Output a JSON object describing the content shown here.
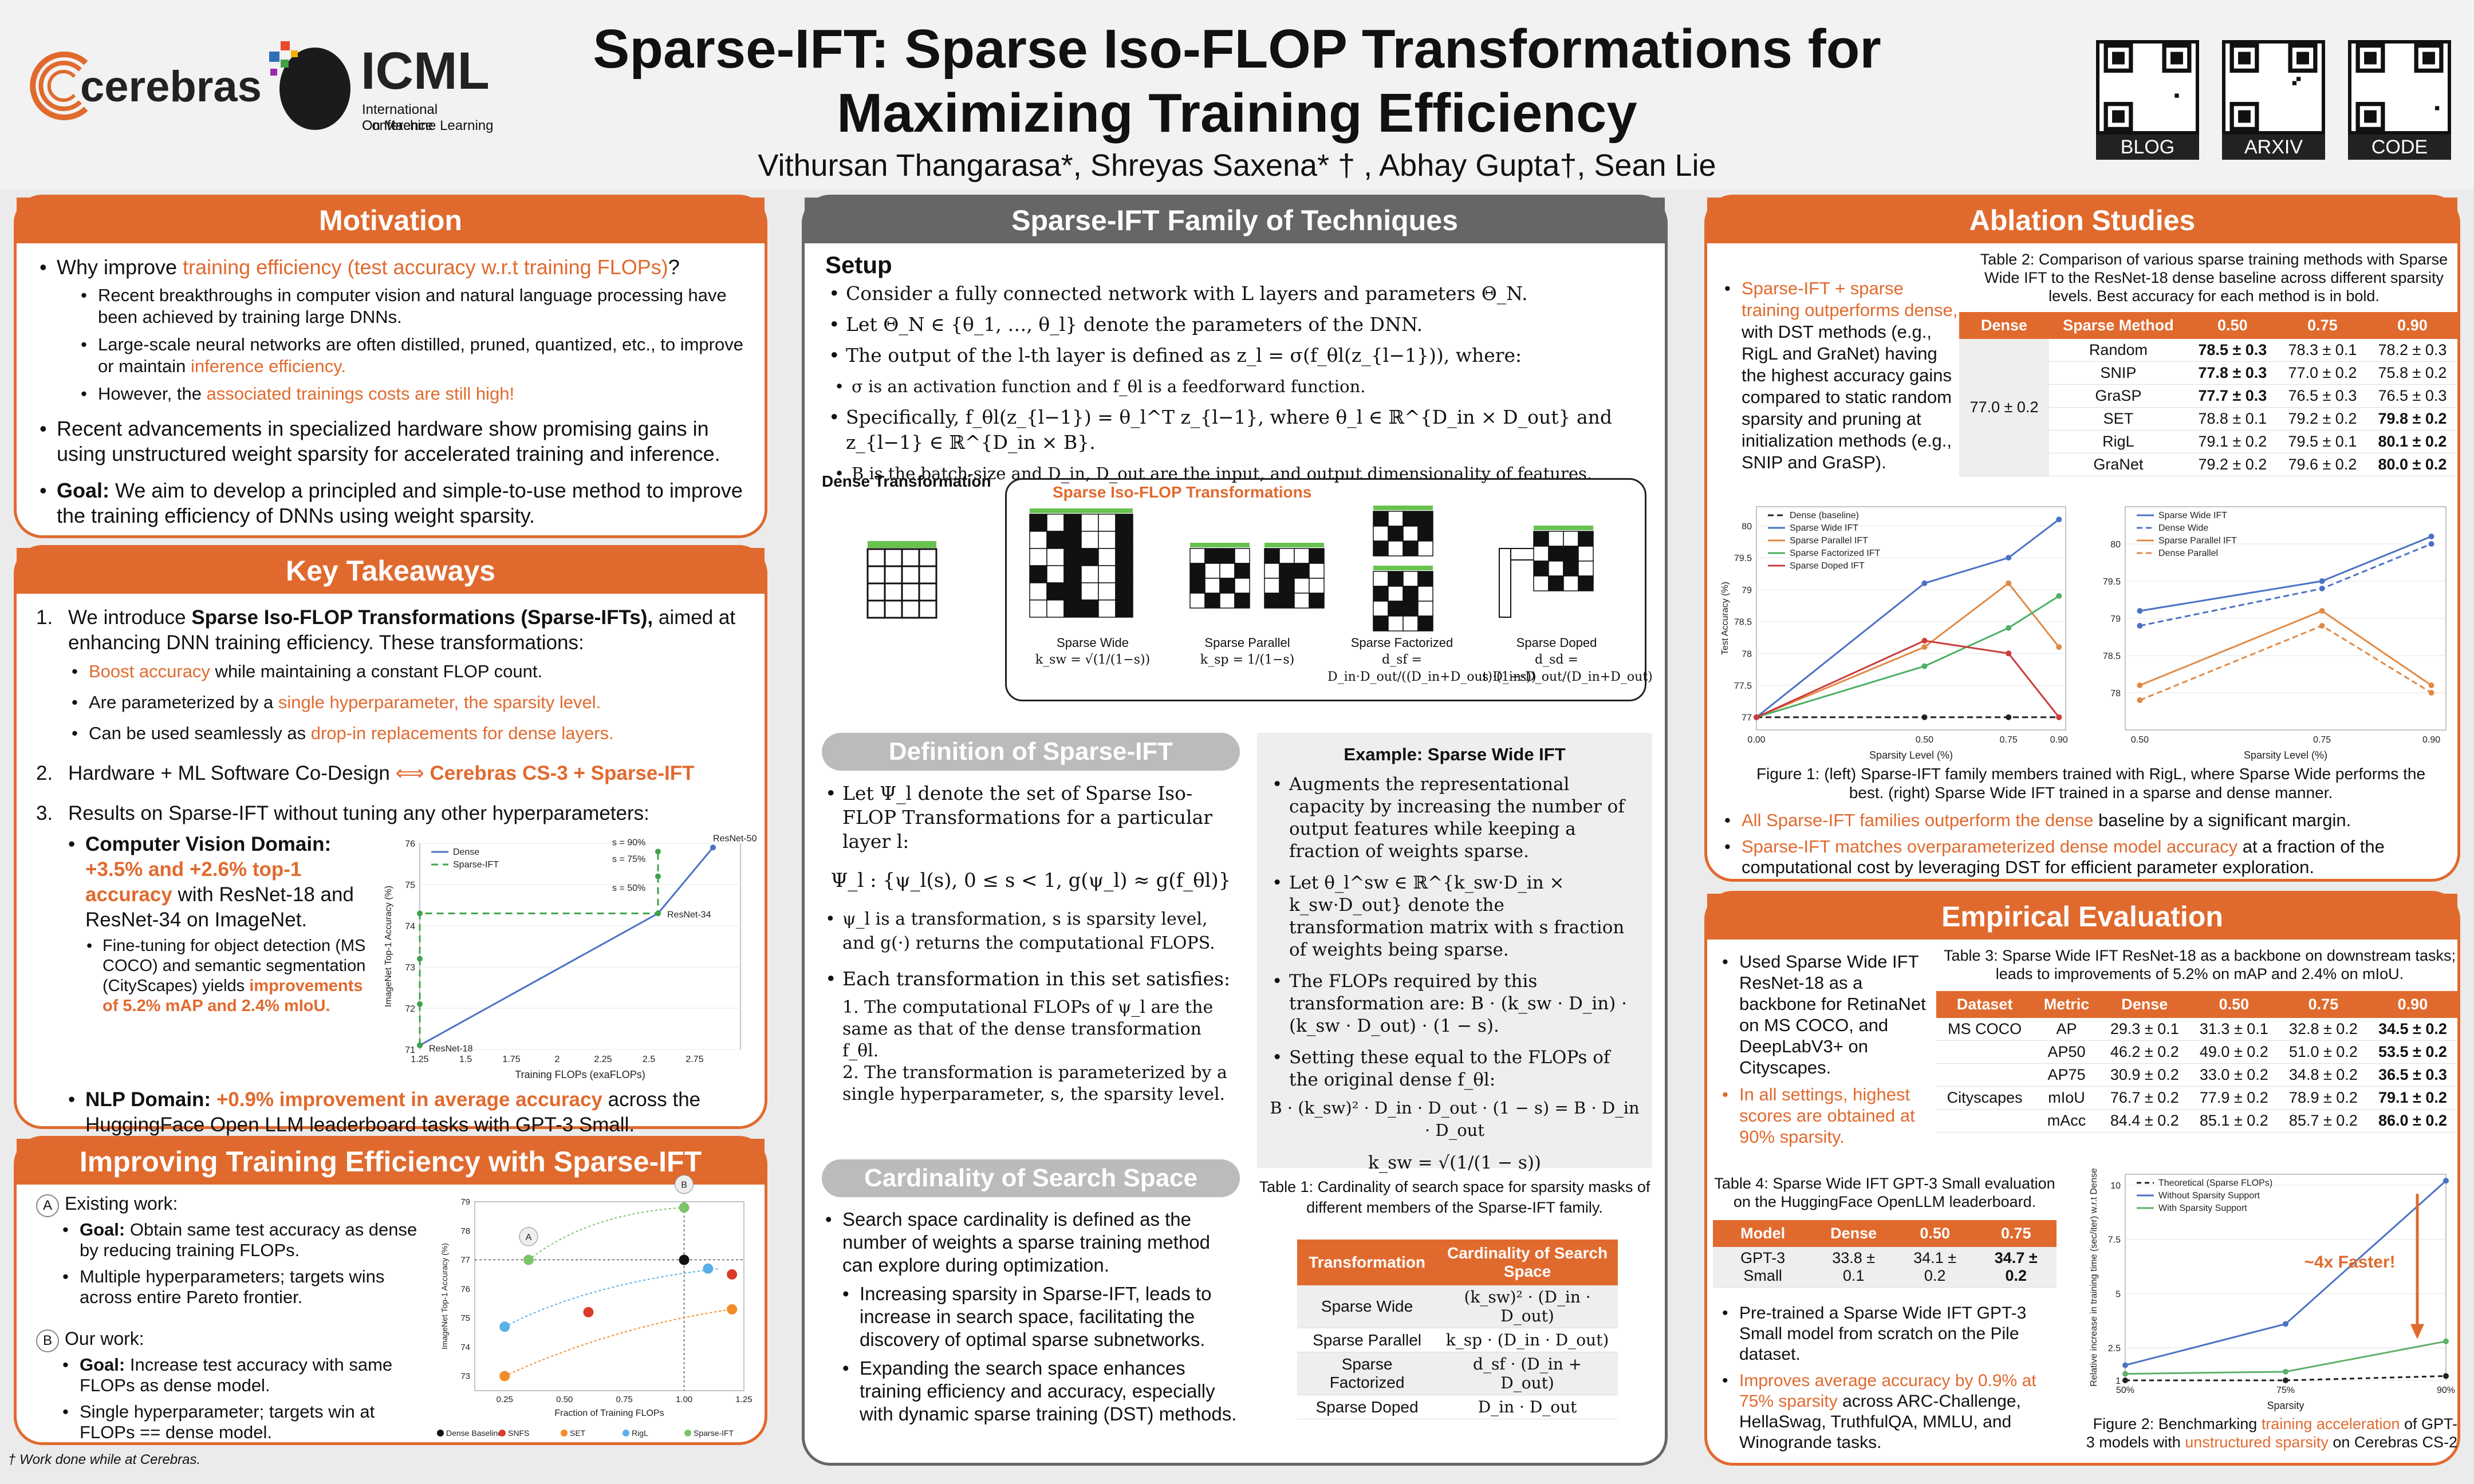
{
  "header": {
    "title_line1": "Sparse-IFT: Sparse Iso-FLOP Transformations for",
    "title_line2": "Maximizing Training Efficiency",
    "authors": "Vithursan Thangarasa*, Shreyas Saxena* † , Abhay Gupta†, Sean Lie",
    "logo_cerebras": "cerebras",
    "logo_icml": "ICML",
    "icml_sub1": "International Conference",
    "icml_sub2": "On Machine Learning",
    "qr_labels": [
      "BLOG",
      "ARXIV",
      "CODE"
    ]
  },
  "motivation": {
    "title": "Motivation",
    "q_pre": "Why improve ",
    "q_hl": "training efficiency (test accuracy w.r.t training FLOPs)",
    "q_post": "?",
    "s1": "Recent breakthroughs in computer vision and natural language processing have been achieved by training large DNNs.",
    "s2_pre": "Large-scale neural networks are often distilled, pruned, quantized, etc., to improve or maintain ",
    "s2_hl": "inference efficiency.",
    "s3_pre": "However, the ",
    "s3_hl": "associated trainings costs are still high!",
    "b2": "Recent advancements in specialized hardware show promising gains in using unstructured weight sparsity for accelerated training and inference.",
    "goal_label": "Goal:",
    "goal": " We aim to develop a principled and simple-to-use method to improve the training efficiency of DNNs using weight sparsity."
  },
  "takeaways": {
    "title": "Key Takeaways",
    "i1_pre": "We introduce ",
    "i1_bold": "Sparse Iso-FLOP Transformations (Sparse-IFTs),",
    "i1_post": " aimed at enhancing DNN training efficiency. These transformations:",
    "a1_hl": "Boost accuracy",
    "a1": " while maintaining a constant FLOP count.",
    "a2_pre": "Are parameterized by a ",
    "a2_hl": "single hyperparameter, the sparsity level.",
    "a3_pre": "Can be used seamlessly as ",
    "a3_hl": "drop-in replacements for dense layers.",
    "i2": "Hardware + ML Software Co-Design",
    "i2_arrow": "⟺",
    "i2_hl": "Cerebras CS-3 + Sparse-IFT",
    "i3": "Results on Sparse-IFT without tuning any other hyperparameters:",
    "cv_label": "Computer Vision Domain:",
    "cv_hl": "+3.5% and +2.6% top-1 accuracy",
    "cv_post": " with ResNet-18 and ResNet-34 on ImageNet.",
    "cv_sub_pre": "Fine-tuning for object detection (MS COCO) and semantic segmentation (CityScapes) yields ",
    "cv_sub_hl": "improvements of 5.2% mAP and 2.4% mIoU.",
    "nlp_label": "NLP Domain:",
    "nlp_hl": " +0.9% improvement in average accuracy",
    "nlp_post": " across the HuggingFace Open LLM leaderboard tasks with GPT-3 Small."
  },
  "improving": {
    "title": "Improving Training Efficiency with Sparse-IFT",
    "a_badge": "A",
    "existing": "Existing work:",
    "e1_label": "Goal:",
    "e1": " Obtain same test accuracy as dense by reducing training FLOPs.",
    "e2": "Multiple hyperparameters; targets wins across entire Pareto frontier.",
    "b_badge": "B",
    "ours": "Our work:",
    "o1_label": "Goal:",
    "o1": " Increase test accuracy with same FLOPs as dense model.",
    "o2": "Single hyperparameter; targets win at FLOPs == dense model."
  },
  "footnote": "† Work done while at Cerebras.",
  "family": {
    "title": "Sparse-IFT Family of Techniques",
    "setup": "Setup",
    "s1": "Consider a fully connected network with L layers and parameters Θ_N.",
    "s2": "Let Θ_N ∈ {θ_1, …, θ_l} denote the parameters of the DNN.",
    "s3": "The output of the l-th layer is defined as z_l = σ(f_θl(z_{l−1})), where:",
    "s3a": "σ is an activation function and f_θl is a feedforward function.",
    "s4": "Specifically, f_θl(z_{l−1}) = θ_l^T z_{l−1}, where θ_l ∈ ℝ^{D_in × D_out} and z_{l−1} ∈ ℝ^{D_in × B}.",
    "s4a": "B is the batch-size and D_in, D_out are the input, and output dimensionality of features.",
    "fig_dense": "Dense Transformation",
    "fig_sparse": "Sparse Iso-FLOP Transformations",
    "fig_names": [
      "Sparse Wide",
      "Sparse Parallel",
      "Sparse Factorized",
      "Sparse Doped"
    ],
    "fig_formulas": [
      "k_sw = √(1/(1−s))",
      "k_sp = 1/(1−s)",
      "d_sf = D_in·D_out/((D_in+D_out)·(1−s))",
      "d_sd = s·D_in·D_out/(D_in+D_out)"
    ],
    "def_title": "Definition of Sparse-IFT",
    "d1": "Let Ψ_l denote the set of Sparse Iso-FLOP Transformations for a particular layer l:",
    "d_eq": "Ψ_l : {ψ_l(s), 0 ≤ s < 1, g(ψ_l) ≈ g(f_θl)}",
    "d2": "ψ_l is a transformation, s is sparsity level, and g(·) returns the computational FLOPS.",
    "d3": "Each transformation in this set satisfies:",
    "d3a": "1. The computational FLOPs of ψ_l are the same as that of the dense transformation f_θl.",
    "d3b": "2. The transformation is parameterized by a single hyperparameter, s, the sparsity level.",
    "ex_title": "Example: Sparse Wide IFT",
    "ex1": "Augments the representational capacity by increasing the number of output features while keeping a fraction of weights sparse.",
    "ex2": "Let θ_l^sw ∈ ℝ^{k_sw·D_in × k_sw·D_out} denote the transformation matrix with s fraction of weights being sparse.",
    "ex3": "The FLOPs required by this transformation are: B · (k_sw · D_in) · (k_sw · D_out) · (1 − s).",
    "ex4": "Setting these equal to the FLOPs of the original dense f_θl:",
    "ex_eq1": "B · (k_sw)² · D_in · D_out · (1 − s) = B · D_in · D_out",
    "ex_eq2": "k_sw = √(1/(1 − s))",
    "card_title": "Cardinality of Search Space",
    "c1": "Search space cardinality is defined as the number of weights a sparse training method can explore during optimization.",
    "c2": "Increasing sparsity in Sparse-IFT, leads to increase in search space, facilitating the discovery of optimal sparse subnetworks.",
    "c3": "Expanding the search space enhances training efficiency and accuracy, especially with dynamic sparse training (DST) methods.",
    "t1_caption": "Table 1: Cardinality of search space for sparsity masks of different members of the Sparse-IFT family.",
    "t1_head": [
      "Transformation",
      "Cardinality of Search Space"
    ],
    "t1_rows": [
      [
        "Sparse Wide",
        "(k_sw)² · (D_in · D_out)"
      ],
      [
        "Sparse Parallel",
        "k_sp · (D_in · D_out)"
      ],
      [
        "Sparse Factorized",
        "d_sf · (D_in + D_out)"
      ],
      [
        "Sparse Doped",
        "D_in · D_out"
      ]
    ]
  },
  "ablation": {
    "title": "Ablation Studies",
    "text_hl": "Sparse-IFT + sparse training outperforms dense,",
    "text": " with DST methods (e.g., RigL and GraNet) having the highest accuracy gains compared to static random sparsity and pruning at initialization methods (e.g., SNIP and GraSP).",
    "t2_caption": "Table 2: Comparison of various sparse training methods with Sparse Wide IFT to the ResNet-18 dense baseline across different sparsity levels. Best accuracy for each method is in bold.",
    "t2_head": [
      "Dense",
      "Sparse Method",
      "0.50",
      "0.75",
      "0.90"
    ],
    "t2_dense": "77.0 ± 0.2",
    "t2_rows": [
      [
        "Random",
        "78.5 ± 0.3",
        "78.3 ± 0.1",
        "78.2 ± 0.3"
      ],
      [
        "SNIP",
        "77.8 ± 0.3",
        "77.0 ± 0.2",
        "75.8 ± 0.2"
      ],
      [
        "GraSP",
        "77.7 ± 0.3",
        "76.5 ± 0.3",
        "76.5 ± 0.3"
      ],
      [
        "SET",
        "78.8 ± 0.1",
        "79.2 ± 0.2",
        "79.8 ± 0.2"
      ],
      [
        "RigL",
        "79.1 ± 0.2",
        "79.5 ± 0.1",
        "80.1 ± 0.2"
      ],
      [
        "GraNet",
        "79.2 ± 0.2",
        "79.6 ± 0.2",
        "80.0 ± 0.2"
      ]
    ],
    "fig1_caption": "Figure 1: (left) Sparse-IFT family members trained with RigL, where Sparse Wide performs the best. (right) Sparse Wide IFT trained in a sparse and dense manner.",
    "b1_hl": "All Sparse-IFT families outperform the dense",
    "b1": " baseline by a significant margin.",
    "b2_hl": "Sparse-IFT matches overparameterized dense model accuracy",
    "b2": " at a fraction of the computational cost by leveraging DST for efficient parameter exploration."
  },
  "empirical": {
    "title": "Empirical Evaluation",
    "text": "Used Sparse Wide IFT ResNet-18 as a backbone for RetinaNet on MS COCO, and DeepLabV3+ on Cityscapes.",
    "text_hl": "In all settings, highest scores are obtained at 90% sparsity.",
    "t3_caption": "Table 3: Sparse Wide IFT ResNet-18 as a backbone on downstream tasks; leads to improvements of 5.2% on mAP and 2.4% on mIoU.",
    "t3_head": [
      "Dataset",
      "Metric",
      "Dense",
      "0.50",
      "0.75",
      "0.90"
    ],
    "t3_rows": [
      [
        "MS COCO",
        "AP",
        "29.3 ± 0.1",
        "31.3 ± 0.1",
        "32.8 ± 0.2",
        "34.5 ± 0.2"
      ],
      [
        "",
        "AP50",
        "46.2 ± 0.2",
        "49.0 ± 0.2",
        "51.0 ± 0.2",
        "53.5 ± 0.2"
      ],
      [
        "",
        "AP75",
        "30.9 ± 0.2",
        "33.0 ± 0.2",
        "34.8 ± 0.2",
        "36.5 ± 0.3"
      ],
      [
        "Cityscapes",
        "mIoU",
        "76.7 ± 0.2",
        "77.9 ± 0.2",
        "78.9 ± 0.2",
        "79.1 ± 0.2"
      ],
      [
        "",
        "mAcc",
        "84.4 ± 0.2",
        "85.1 ± 0.2",
        "85.7 ± 0.2",
        "86.0 ± 0.2"
      ]
    ],
    "t4_caption": "Table 4: Sparse Wide IFT GPT-3 Small evaluation on the HuggingFace OpenLLM leaderboard.",
    "t4_head": [
      "Model",
      "Dense",
      "0.50",
      "0.75"
    ],
    "t4_row": [
      "GPT-3 Small",
      "33.8 ± 0.1",
      "34.1 ± 0.2",
      "34.7 ± 0.2"
    ],
    "p1": "Pre-trained a Sparse Wide IFT GPT-3 Small model from scratch on the Pile dataset.",
    "p2_hl": "Improves average accuracy by 0.9% at 75% sparsity",
    "p2": " across ARC-Challenge, HellaSwag, TruthfulQA, MMLU, and Winogrande tasks.",
    "fig2_caption_pre": "Figure 2: Benchmarking ",
    "fig2_hl1": "training acceleration",
    "fig2_mid": " of GPT-3 models with ",
    "fig2_hl2": "unstructured sparsity",
    "fig2_post": " on Cerebras CS-2",
    "fig2_annot": "~4x Faster!"
  },
  "chart_data": [
    {
      "type": "line",
      "ylabel": "ImageNet Top-1 Accuracy (%)",
      "xlabel": "Training FLOPs (exaFLOPs)",
      "xlim": [
        1.25,
        3.0
      ],
      "ylim": [
        71,
        76
      ],
      "series": [
        {
          "name": "Dense",
          "x": [
            1.25,
            2.55,
            2.85
          ],
          "y": [
            71.1,
            74.3,
            75.9
          ]
        },
        {
          "name": "Sparse-IFT",
          "x": [
            1.25,
            1.25,
            1.25,
            1.25,
            2.55,
            2.55,
            2.55
          ],
          "y": [
            71.1,
            72.1,
            73.2,
            74.3,
            74.3,
            75.2,
            75.8
          ]
        }
      ],
      "annotations": [
        "ResNet-50",
        "ResNet-34",
        "ResNet-18",
        "s = 90%",
        "s = 75%",
        "s = 50%"
      ]
    },
    {
      "type": "scatter",
      "ylabel": "ImageNet Top-1 Accuracy (%)",
      "xlabel": "Fraction of Training FLOPs",
      "xlim": [
        0.125,
        1.25
      ],
      "ylim": [
        72.5,
        79
      ],
      "legend": [
        "Dense Baseline",
        "SNFS",
        "SET",
        "RigL",
        "Sparse-IFT"
      ]
    },
    {
      "type": "line",
      "ylabel": "Test Accuracy (%)",
      "xlabel": "Sparsity Level (%)",
      "x": [
        0.0,
        0.5,
        0.75,
        0.9
      ],
      "ylim": [
        76.8,
        80.3
      ],
      "series": [
        {
          "name": "Dense (baseline)",
          "y": [
            77.0,
            77.0,
            77.0,
            77.0
          ]
        },
        {
          "name": "Sparse Wide IFT",
          "y": [
            77.0,
            79.1,
            79.5,
            80.1
          ]
        },
        {
          "name": "Sparse Parallel IFT",
          "y": [
            77.0,
            78.1,
            79.1,
            78.1
          ]
        },
        {
          "name": "Sparse Factorized IFT",
          "y": [
            77.0,
            77.8,
            78.4,
            78.9
          ]
        },
        {
          "name": "Sparse Doped IFT",
          "y": [
            77.0,
            78.2,
            78.0,
            77.0
          ]
        }
      ]
    },
    {
      "type": "line",
      "xlabel": "Sparsity Level (%)",
      "x": [
        0.5,
        0.75,
        0.9
      ],
      "ylim": [
        77.5,
        80.5
      ],
      "series": [
        {
          "name": "Sparse Wide IFT",
          "y": [
            79.1,
            79.5,
            80.1
          ]
        },
        {
          "name": "Dense Wide",
          "y": [
            78.9,
            79.4,
            80.0
          ]
        },
        {
          "name": "Sparse Parallel IFT",
          "y": [
            78.1,
            79.1,
            78.1
          ]
        },
        {
          "name": "Dense Parallel",
          "y": [
            77.9,
            78.9,
            78.0
          ]
        }
      ]
    },
    {
      "type": "line",
      "ylabel": "Relative increase in training time (sec/iter) w.r.t Dense",
      "xlabel": "Sparsity",
      "categories": [
        "50%",
        "75%",
        "90%"
      ],
      "ylim": [
        1,
        10.5
      ],
      "series": [
        {
          "name": "Theoretical (Sparse FLOPs)",
          "values": [
            1.0,
            1.0,
            1.2
          ]
        },
        {
          "name": "Without Sparsity Support",
          "values": [
            1.7,
            3.6,
            10.2
          ]
        },
        {
          "name": "With Sparsity Support",
          "values": [
            1.3,
            1.4,
            2.8
          ]
        }
      ]
    }
  ]
}
